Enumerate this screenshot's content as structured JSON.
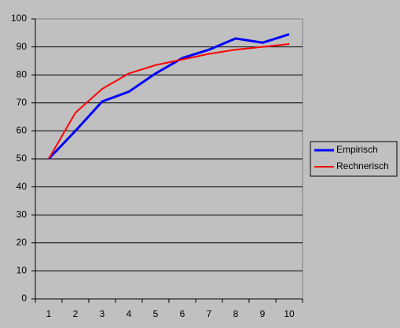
{
  "chart_data": {
    "type": "line",
    "categories": [
      "1",
      "2",
      "3",
      "4",
      "5",
      "6",
      "7",
      "8",
      "9",
      "10"
    ],
    "series": [
      {
        "name": "Empirisch",
        "color": "#0000ff",
        "values": [
          50,
          60,
          70.5,
          74,
          80.5,
          86,
          89,
          93,
          91.5,
          94.5
        ]
      },
      {
        "name": "Rechnerisch",
        "color": "#ff0000",
        "values": [
          50,
          66.5,
          75,
          80.5,
          83.5,
          85.5,
          87.5,
          89,
          90,
          91
        ]
      }
    ],
    "ylim": [
      0,
      100
    ],
    "yticks": [
      0,
      10,
      20,
      30,
      40,
      50,
      60,
      70,
      80,
      90,
      100
    ],
    "grid": true,
    "legend": "right"
  }
}
